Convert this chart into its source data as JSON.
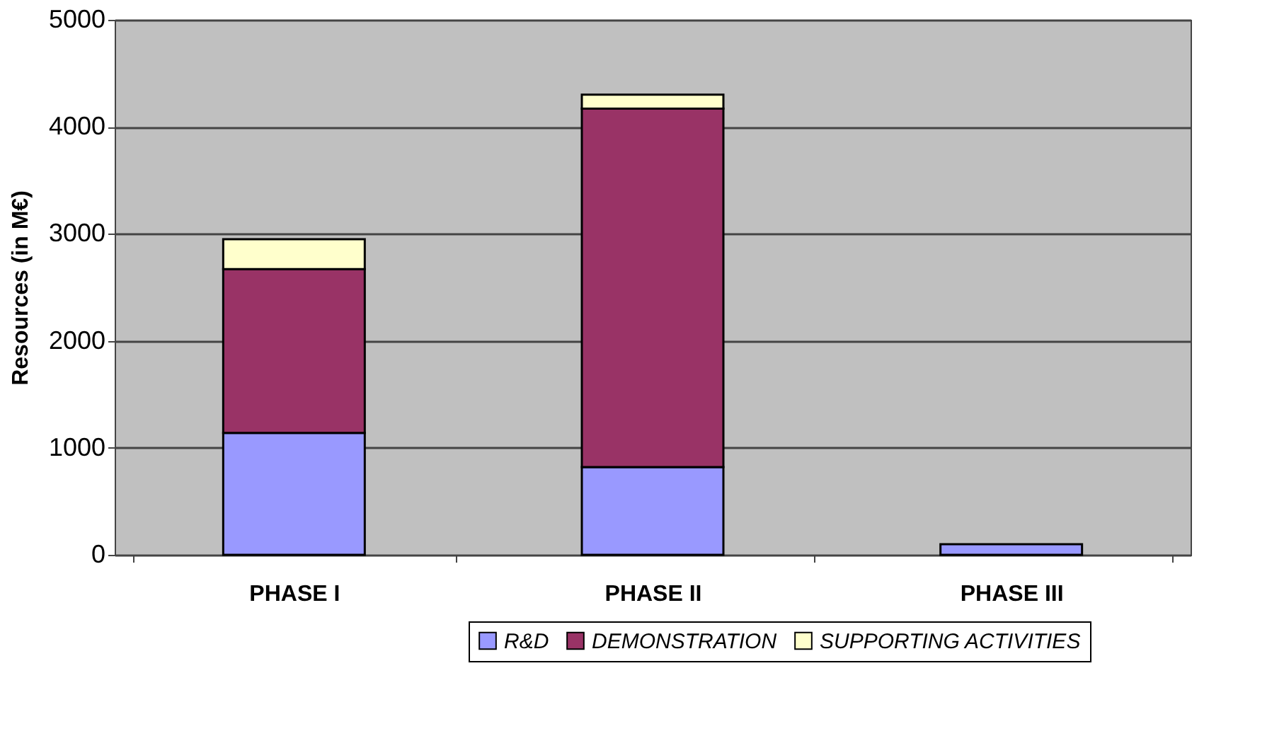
{
  "chart_data": {
    "type": "bar",
    "stacked": true,
    "ylabel": "Resources (in M€)",
    "categories": [
      "PHASE I",
      "PHASE II",
      "PHASE III"
    ],
    "series": [
      {
        "name": "R&D",
        "color": "#9999ff",
        "values": [
          1140,
          820,
          100
        ]
      },
      {
        "name": "DEMONSTRATION",
        "color": "#993366",
        "values": [
          1530,
          3350,
          null
        ]
      },
      {
        "name": "SUPPORTING ACTIVITIES",
        "color": "#ffffcc",
        "values": [
          280,
          130,
          null
        ]
      }
    ],
    "ylim": [
      0,
      5000
    ],
    "yticks": [
      0,
      1000,
      2000,
      3000,
      4000,
      5000
    ],
    "grid": "y",
    "legend": "bottom"
  }
}
